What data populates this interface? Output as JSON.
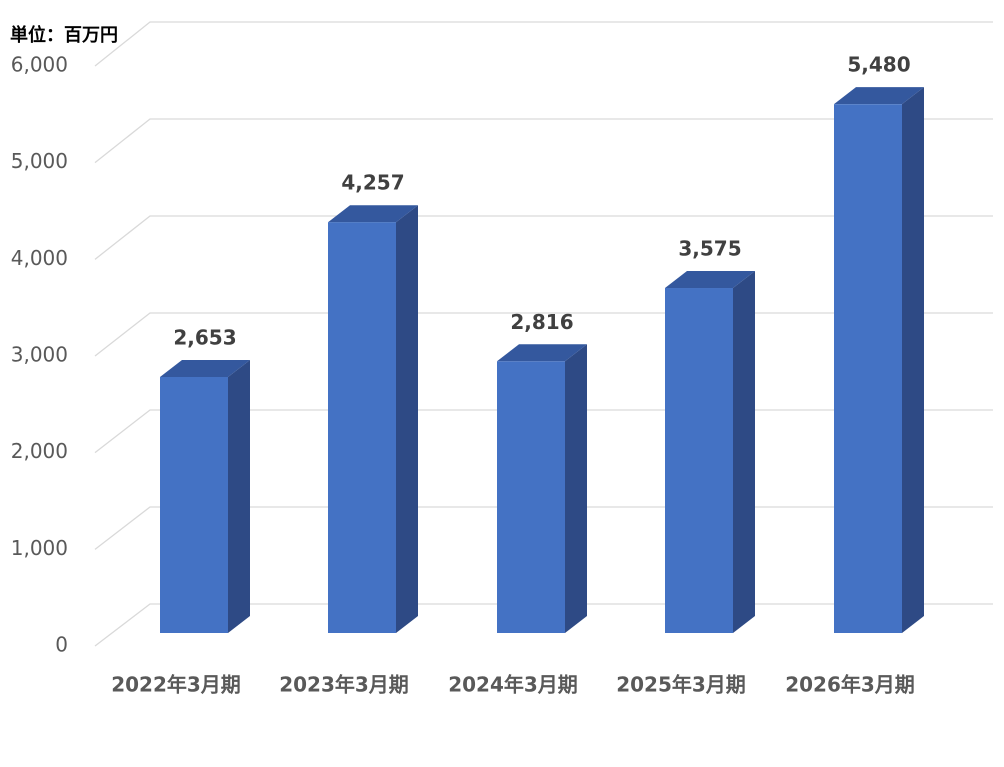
{
  "chart_data": {
    "type": "bar3d",
    "unit_label": "単位：百万円",
    "categories": [
      "2022年3月期",
      "2023年3月期",
      "2024年3月期",
      "2025年3月期",
      "2026年3月期"
    ],
    "values": [
      2653,
      4257,
      2816,
      3575,
      5480
    ],
    "value_labels": [
      "2,653",
      "4,257",
      "2,816",
      "3,575",
      "5,480"
    ],
    "color": "#4472c4",
    "ylim": [
      0,
      6000
    ],
    "yticks": [
      0,
      {
        "value": 1000,
        "label": "1,000"
      },
      {
        "value": 2000,
        "label": "2,000"
      },
      {
        "value": 3000,
        "label": "3,000"
      },
      {
        "value": 4000,
        "label": "4,000"
      },
      {
        "value": 5000,
        "label": "5,000"
      },
      {
        "value": 6000,
        "label": "6,000"
      }
    ],
    "grid": true
  }
}
